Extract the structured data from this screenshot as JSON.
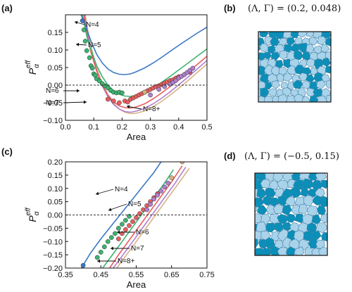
{
  "panels": {
    "a": "(a)",
    "b": "(b)",
    "c": "(c)",
    "d": "(d)"
  },
  "annotations": {
    "b": "(Λ, Γ) = (0.2, 0.048)",
    "d": "(Λ, Γ) = (−0.5, 0.15)"
  },
  "colors": {
    "N4": "#3a78c5",
    "N5": "#3cb371",
    "N6": "#e85d5d",
    "N7": "#b07fd0",
    "N8": "#d4b483",
    "tissue_dark": "#0b8fb8",
    "tissue_light": "#a9d3ea",
    "tissue_edge": "#3f7fa6"
  },
  "chart_data": [
    {
      "type": "scatter",
      "panel": "a",
      "xlabel": "Area",
      "ylabel": "P_α^eff",
      "xlim": [
        0,
        0.5
      ],
      "ylim": [
        -0.1,
        0.2
      ],
      "xticks": [
        "0.0",
        "0.1",
        "0.2",
        "0.3",
        "0.4",
        "0.5"
      ],
      "yticks": [
        "−0.10",
        "−0.05",
        "0.00",
        "0.05",
        "0.10",
        "0.15"
      ],
      "reference_line_y": 0,
      "curve_labels": [
        "N=4",
        "N=5",
        "N=6",
        "N=7",
        "N=8+"
      ],
      "curves": [
        {
          "N": "N=4",
          "x": [
            0.055,
            0.07,
            0.09,
            0.11,
            0.13,
            0.15,
            0.17,
            0.19,
            0.21,
            0.23,
            0.25,
            0.28,
            0.31,
            0.34,
            0.37,
            0.4,
            0.43,
            0.46,
            0.5
          ],
          "y": [
            0.2,
            0.172,
            0.125,
            0.088,
            0.063,
            0.046,
            0.036,
            0.031,
            0.03,
            0.032,
            0.038,
            0.049,
            0.063,
            0.079,
            0.096,
            0.113,
            0.129,
            0.145,
            0.165
          ]
        },
        {
          "N": "N=5",
          "x": [
            0.06,
            0.075,
            0.09,
            0.11,
            0.13,
            0.15,
            0.17,
            0.19,
            0.21,
            0.23,
            0.25,
            0.28,
            0.31,
            0.34,
            0.37,
            0.4,
            0.43,
            0.46,
            0.5
          ],
          "y": [
            0.2,
            0.14,
            0.1,
            0.056,
            0.024,
            0.0,
            -0.016,
            -0.026,
            -0.031,
            -0.032,
            -0.029,
            -0.02,
            -0.007,
            0.008,
            0.025,
            0.043,
            0.061,
            0.079,
            0.103
          ]
        },
        {
          "N": "N=6",
          "x": [
            0.065,
            0.08,
            0.09,
            0.11,
            0.13,
            0.15,
            0.17,
            0.19,
            0.21,
            0.23,
            0.25,
            0.28,
            0.31,
            0.34,
            0.37,
            0.4,
            0.43,
            0.46,
            0.5
          ],
          "y": [
            0.2,
            0.13,
            0.094,
            0.04,
            0.0,
            -0.028,
            -0.047,
            -0.059,
            -0.064,
            -0.065,
            -0.062,
            -0.053,
            -0.039,
            -0.022,
            -0.004,
            0.015,
            0.035,
            0.055,
            0.082
          ]
        },
        {
          "N": "N=7",
          "x": [
            0.068,
            0.08,
            0.09,
            0.11,
            0.13,
            0.15,
            0.17,
            0.19,
            0.21,
            0.23,
            0.25,
            0.28,
            0.31,
            0.34,
            0.37,
            0.4,
            0.43,
            0.46,
            0.5
          ],
          "y": [
            0.2,
            0.14,
            0.1,
            0.042,
            -0.002,
            -0.033,
            -0.055,
            -0.068,
            -0.075,
            -0.077,
            -0.074,
            -0.066,
            -0.053,
            -0.037,
            -0.019,
            0.001,
            0.021,
            0.042,
            0.07
          ]
        },
        {
          "N": "N=8+",
          "x": [
            0.07,
            0.08,
            0.09,
            0.11,
            0.13,
            0.15,
            0.17,
            0.19,
            0.21,
            0.23,
            0.25,
            0.28,
            0.31,
            0.34,
            0.37,
            0.4,
            0.43,
            0.46,
            0.5
          ],
          "y": [
            0.2,
            0.15,
            0.11,
            0.05,
            0.005,
            -0.028,
            -0.052,
            -0.068,
            -0.077,
            -0.081,
            -0.08,
            -0.073,
            -0.061,
            -0.046,
            -0.028,
            -0.009,
            0.011,
            0.032,
            0.06
          ]
        }
      ],
      "points": [
        {
          "N": "N=4",
          "x": [
            0.06
          ],
          "y": [
            0.183
          ]
        },
        {
          "N": "N=5",
          "x": [
            0.065,
            0.07,
            0.075,
            0.085,
            0.09,
            0.095,
            0.1,
            0.105,
            0.11,
            0.12,
            0.13,
            0.14,
            0.15,
            0.16,
            0.17,
            0.18,
            0.19,
            0.2
          ],
          "y": [
            0.157,
            0.125,
            0.098,
            0.078,
            0.055,
            0.048,
            0.032,
            0.028,
            0.018,
            0.012,
            0.004,
            -0.002,
            -0.008,
            -0.015,
            -0.02,
            -0.022,
            -0.02,
            -0.022
          ]
        },
        {
          "N": "N=6",
          "x": [
            0.15,
            0.17,
            0.19,
            0.21,
            0.22,
            0.23,
            0.24,
            0.25,
            0.26,
            0.27,
            0.28,
            0.29,
            0.3,
            0.31,
            0.32,
            0.33,
            0.34,
            0.35,
            0.36,
            0.37,
            0.38,
            0.39,
            0.4,
            0.42,
            0.44
          ],
          "y": [
            -0.04,
            -0.045,
            -0.05,
            -0.045,
            -0.048,
            -0.04,
            -0.036,
            -0.032,
            -0.028,
            -0.024,
            -0.02,
            -0.016,
            -0.012,
            -0.008,
            -0.004,
            -0.002,
            0.002,
            0.006,
            0.009,
            0.013,
            0.015,
            0.02,
            0.024,
            0.03,
            0.037
          ]
        },
        {
          "N": "N=7",
          "x": [
            0.3,
            0.33,
            0.35,
            0.37,
            0.38,
            0.39,
            0.4,
            0.41,
            0.42,
            0.43,
            0.44,
            0.45
          ],
          "y": [
            -0.028,
            -0.012,
            -0.004,
            0.003,
            0.008,
            0.013,
            0.02,
            0.025,
            0.03,
            0.036,
            0.042,
            0.048
          ]
        },
        {
          "N": "N=8+",
          "x": [
            0.28
          ],
          "y": [
            -0.02
          ]
        }
      ]
    },
    {
      "type": "scatter",
      "panel": "c",
      "xlabel": "Area",
      "ylabel": "P_α^eff",
      "xlim": [
        0.35,
        0.75
      ],
      "ylim": [
        -0.2,
        0.2
      ],
      "xticks": [
        "0.35",
        "0.45",
        "0.55",
        "0.65",
        "0.75"
      ],
      "yticks": [
        "−0.20",
        "−0.15",
        "−0.10",
        "−0.05",
        "0.00",
        "0.05",
        "0.10",
        "0.15",
        "0.20"
      ],
      "reference_line_y": 0,
      "curve_labels": [
        "N=4",
        "N=5",
        "N=6",
        "N=7",
        "N=8+"
      ],
      "curves": [
        {
          "N": "N=4",
          "x": [
            0.395,
            0.42,
            0.45,
            0.48,
            0.51,
            0.54,
            0.57,
            0.6,
            0.62
          ],
          "y": [
            -0.2,
            -0.145,
            -0.09,
            -0.04,
            0.01,
            0.06,
            0.11,
            0.16,
            0.2
          ]
        },
        {
          "N": "N=5",
          "x": [
            0.455,
            0.48,
            0.51,
            0.54,
            0.57,
            0.6,
            0.63,
            0.655
          ],
          "y": [
            -0.2,
            -0.155,
            -0.1,
            -0.045,
            0.01,
            0.065,
            0.12,
            0.17
          ]
        },
        {
          "N": "N=6",
          "x": [
            0.475,
            0.5,
            0.53,
            0.56,
            0.59,
            0.62,
            0.65,
            0.68
          ],
          "y": [
            -0.2,
            -0.15,
            -0.095,
            -0.04,
            0.015,
            0.07,
            0.125,
            0.185
          ]
        },
        {
          "N": "N=7",
          "x": [
            0.485,
            0.51,
            0.54,
            0.57,
            0.6,
            0.63,
            0.66,
            0.69
          ],
          "y": [
            -0.2,
            -0.155,
            -0.1,
            -0.045,
            0.01,
            0.065,
            0.12,
            0.18
          ]
        },
        {
          "N": "N=8+",
          "x": [
            0.495,
            0.52,
            0.55,
            0.58,
            0.61,
            0.64,
            0.67,
            0.7
          ],
          "y": [
            -0.2,
            -0.155,
            -0.1,
            -0.045,
            0.01,
            0.065,
            0.12,
            0.175
          ]
        }
      ],
      "points": [
        {
          "N": "N=4",
          "x": [
            0.4
          ],
          "y": [
            -0.19
          ]
        },
        {
          "N": "N=5",
          "x": [
            0.44,
            0.45,
            0.46,
            0.47,
            0.48,
            0.49,
            0.5,
            0.51,
            0.52,
            0.53
          ],
          "y": [
            -0.16,
            -0.14,
            -0.12,
            -0.1,
            -0.085,
            -0.07,
            -0.05,
            -0.035,
            -0.02,
            -0.005
          ]
        },
        {
          "N": "N=6",
          "x": [
            0.5,
            0.51,
            0.52,
            0.53,
            0.54,
            0.55,
            0.56,
            0.57,
            0.58,
            0.59,
            0.6,
            0.61
          ],
          "y": [
            -0.09,
            -0.07,
            -0.055,
            -0.04,
            -0.025,
            -0.01,
            0.005,
            0.02,
            0.035,
            0.05,
            0.065,
            0.08
          ]
        },
        {
          "N": "N=7",
          "x": [
            0.58,
            0.59,
            0.6,
            0.61,
            0.62,
            0.63,
            0.64
          ],
          "y": [
            0.02,
            0.04,
            0.06,
            0.075,
            0.09,
            0.105,
            0.12
          ]
        },
        {
          "N": "N=8+",
          "x": [
            0.65,
            0.68
          ],
          "y": [
            0.14,
            0.2
          ]
        }
      ]
    }
  ]
}
